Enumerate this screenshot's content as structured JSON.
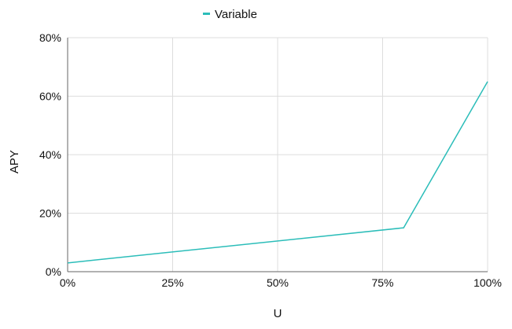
{
  "chart_data": {
    "type": "line",
    "title": "",
    "xlabel": "U",
    "ylabel": "APY",
    "xlim": [
      0,
      100
    ],
    "ylim": [
      0,
      80
    ],
    "x_ticks": [
      0,
      25,
      50,
      75,
      100
    ],
    "x_tick_labels": [
      "0%",
      "25%",
      "50%",
      "75%",
      "100%"
    ],
    "y_ticks": [
      0,
      20,
      40,
      60,
      80
    ],
    "y_tick_labels": [
      "0%",
      "20%",
      "40%",
      "60%",
      "80%"
    ],
    "grid": true,
    "legend_position": "top-center",
    "series": [
      {
        "name": "Variable",
        "color": "#2bbdb9",
        "x": [
          0,
          80,
          100
        ],
        "y": [
          3,
          15,
          65
        ]
      }
    ]
  }
}
